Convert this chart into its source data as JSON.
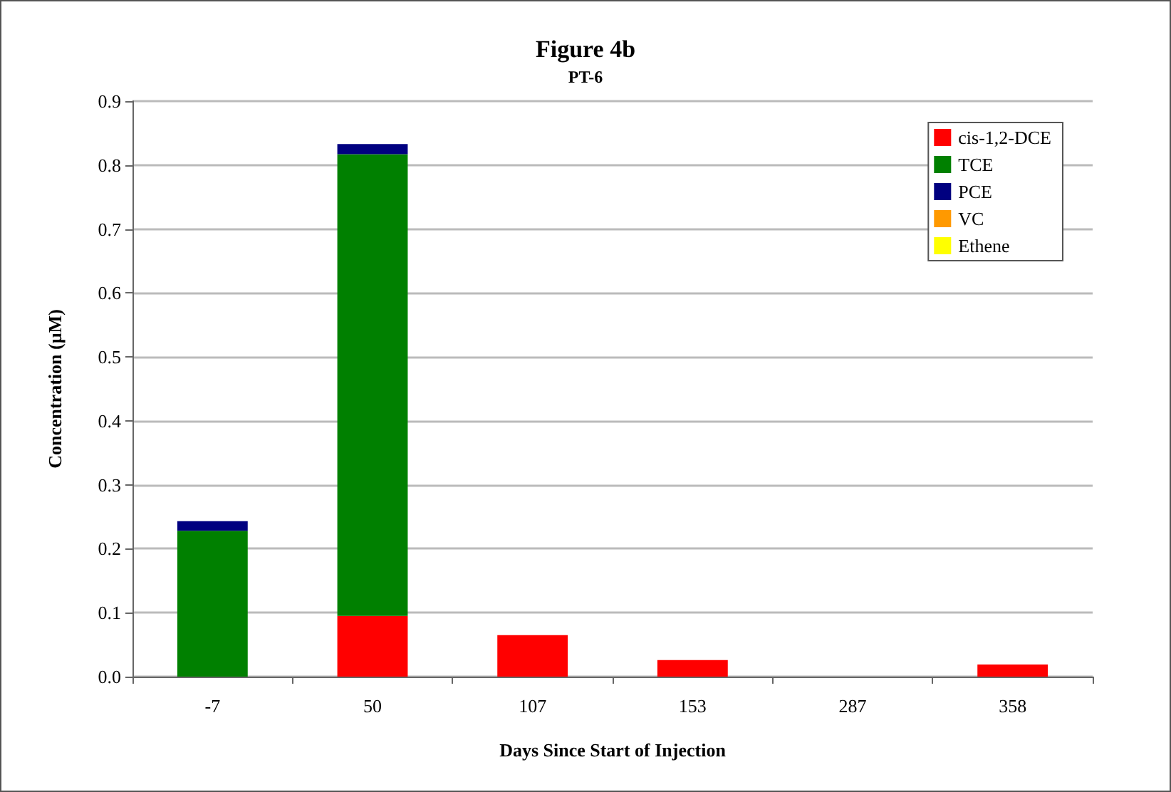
{
  "chart_data": {
    "type": "bar",
    "title": "Figure 4b",
    "subtitle": "PT-6",
    "xlabel": "Days Since Start of Injection",
    "ylabel": "Concentration (µM)",
    "categories": [
      "-7",
      "50",
      "107",
      "153",
      "287",
      "358"
    ],
    "stacked": true,
    "series": [
      {
        "name": "cis-1,2-DCE",
        "color": "#ff0000",
        "values": [
          0,
          0.095,
          0.065,
          0.026,
          0,
          0.019
        ]
      },
      {
        "name": "TCE",
        "color": "#008000",
        "values": [
          0.228,
          0.722,
          0,
          0,
          0,
          0
        ]
      },
      {
        "name": "PCE",
        "color": "#000080",
        "values": [
          0.015,
          0.016,
          0,
          0,
          0,
          0
        ]
      },
      {
        "name": "VC",
        "color": "#ff9900",
        "values": [
          0,
          0,
          0,
          0,
          0,
          0
        ]
      },
      {
        "name": "Ethene",
        "color": "#ffff00",
        "values": [
          0,
          0,
          0,
          0,
          0,
          0
        ]
      }
    ],
    "ylim": [
      0,
      0.9
    ],
    "yticks": [
      {
        "value": 0,
        "label": "0.0"
      },
      0.1,
      0.2,
      0.3,
      0.4,
      0.5,
      0.6,
      0.7,
      0.8,
      0.9
    ],
    "grid": "y",
    "legend": "top right"
  }
}
